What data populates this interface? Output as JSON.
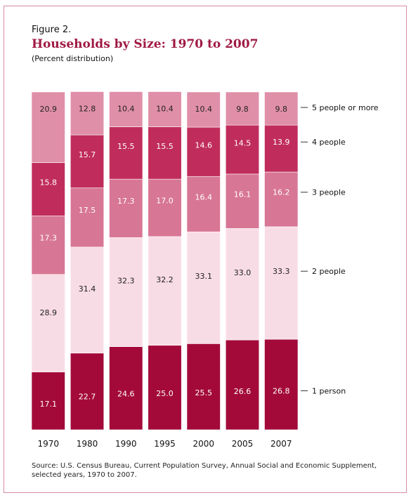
{
  "figure_label": "Figure 2.",
  "chart_data": {
    "type": "bar",
    "stacked": true,
    "title": "Households by Size: 1970 to 2007",
    "subtitle": "(Percent distribution)",
    "categories": [
      "1970",
      "1980",
      "1990",
      "1995",
      "2000",
      "2005",
      "2007"
    ],
    "ylim": [
      0,
      100
    ],
    "legend_placement": "right",
    "series": [
      {
        "name": "1 person",
        "values": [
          17.1,
          22.7,
          24.6,
          25.0,
          25.5,
          26.6,
          26.8
        ],
        "labels": [
          "17.1",
          "22.7",
          "24.6",
          "25.0",
          "25.5",
          "26.6",
          "26.8"
        ],
        "color": "#a30a3a",
        "text_color": "#ffffff"
      },
      {
        "name": "2 people",
        "values": [
          28.9,
          31.4,
          32.3,
          32.2,
          33.1,
          33.0,
          33.3
        ],
        "labels": [
          "28.9",
          "31.4",
          "32.3",
          "32.2",
          "33.1",
          "33.0",
          "33.3"
        ],
        "color": "#f8dce5",
        "text_color": "#222222"
      },
      {
        "name": "3 people",
        "values": [
          17.3,
          17.5,
          17.3,
          17.0,
          16.4,
          16.1,
          16.2
        ],
        "labels": [
          "17.3",
          "17.5",
          "17.3",
          "17.0",
          "16.4",
          "16.1",
          "16.2"
        ],
        "color": "#d87695",
        "text_color": "#ffffff"
      },
      {
        "name": "4 people",
        "values": [
          15.8,
          15.7,
          15.5,
          15.5,
          14.6,
          14.5,
          13.9
        ],
        "labels": [
          "15.8",
          "15.7",
          "15.5",
          "15.5",
          "14.6",
          "14.5",
          "13.9"
        ],
        "color": "#c02d5c",
        "text_color": "#ffffff"
      },
      {
        "name": "5 people or more",
        "values": [
          20.9,
          12.8,
          10.4,
          10.4,
          10.4,
          9.8,
          9.8
        ],
        "labels": [
          "20.9",
          "12.8",
          "10.4",
          "10.4",
          "10.4",
          "9.8",
          "9.8"
        ],
        "color": "#e08fa9",
        "text_color": "#222222"
      }
    ]
  },
  "source": "Source:  U.S. Census Bureau, Current Population Survey, Annual Social and Economic Supplement, selected years, 1970 to 2007."
}
